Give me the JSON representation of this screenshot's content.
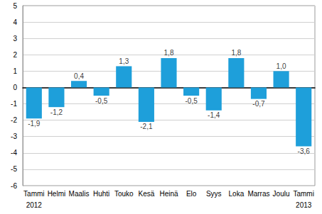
{
  "chart_data": {
    "type": "bar",
    "categories": [
      "Tammi",
      "Helmi",
      "Maalis",
      "Huhti",
      "Touko",
      "Kesä",
      "Heinä",
      "Elo",
      "Syys",
      "Loka",
      "Marras",
      "Joulu",
      "Tammi"
    ],
    "year_labels": [
      "2012",
      null,
      null,
      null,
      null,
      null,
      null,
      null,
      null,
      null,
      null,
      null,
      "2013"
    ],
    "values": [
      -1.9,
      -1.2,
      0.4,
      -0.5,
      1.3,
      -2.1,
      1.8,
      -0.5,
      -1.4,
      1.8,
      -0.7,
      1.0,
      -3.6
    ],
    "value_labels": [
      "-1,9",
      "-1,2",
      "0,4",
      "-0,5",
      "1,3",
      "-2,1",
      "1,8",
      "-0,5",
      "-1,4",
      "1,8",
      "-0,7",
      "1,0",
      "-3,6"
    ],
    "color": "#1e9fda",
    "ylim": [
      -6,
      5
    ],
    "yticks": [
      -6,
      -5,
      -4,
      -3,
      -2,
      -1,
      0,
      1,
      2,
      3,
      4,
      5
    ],
    "grid": true,
    "data_labels": true
  }
}
